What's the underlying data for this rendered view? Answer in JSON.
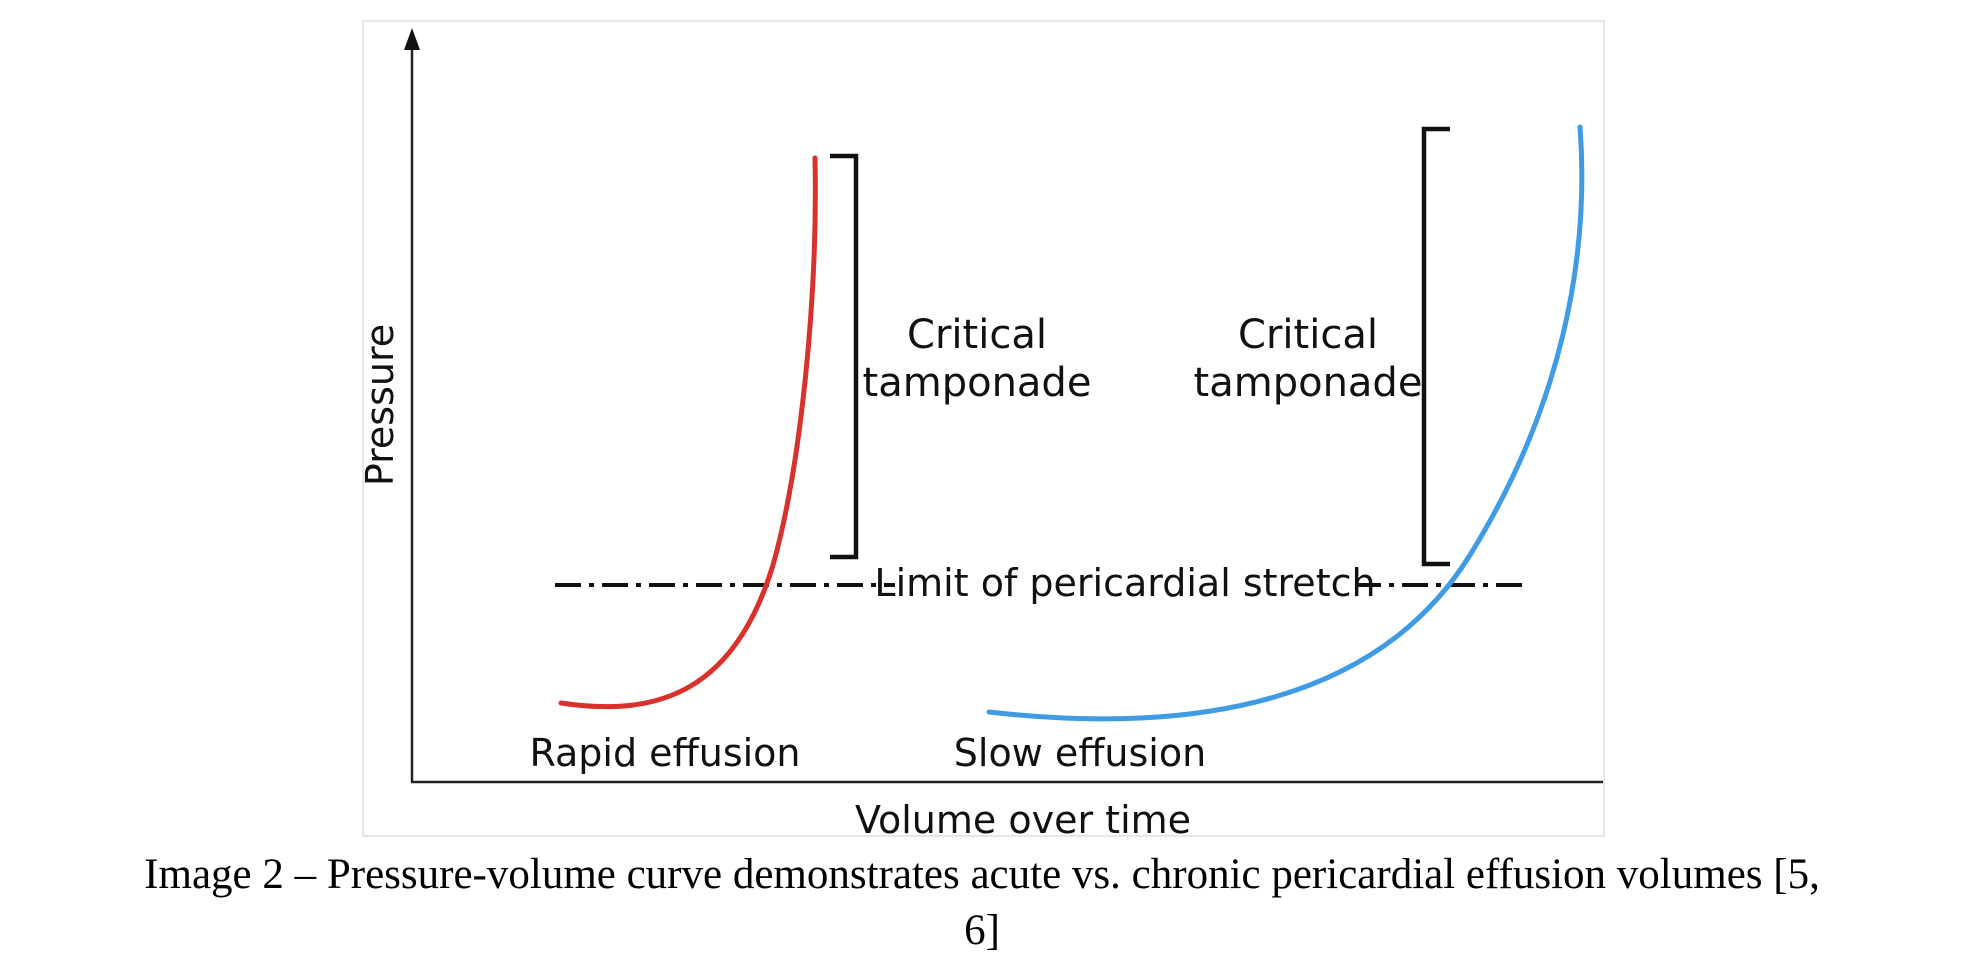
{
  "axes": {
    "y_label": "Pressure",
    "x_label": "Volume over time"
  },
  "labels": {
    "critical_left": [
      "Critical",
      "tamponade"
    ],
    "critical_right": [
      "Critical",
      "tamponade"
    ],
    "limit": "Limit of pericardial stretch",
    "rapid": "Rapid effusion",
    "slow": "Slow effusion"
  },
  "curves": {
    "rapid": {
      "name": "Rapid effusion",
      "color": "#d9312b"
    },
    "slow": {
      "name": "Slow effusion",
      "color": "#3f9be4"
    }
  },
  "caption": {
    "line1": "Image 2 – Pressure-volume curve demonstrates acute vs. chronic pericardial effusion volumes [5,",
    "line2": "6]"
  }
}
